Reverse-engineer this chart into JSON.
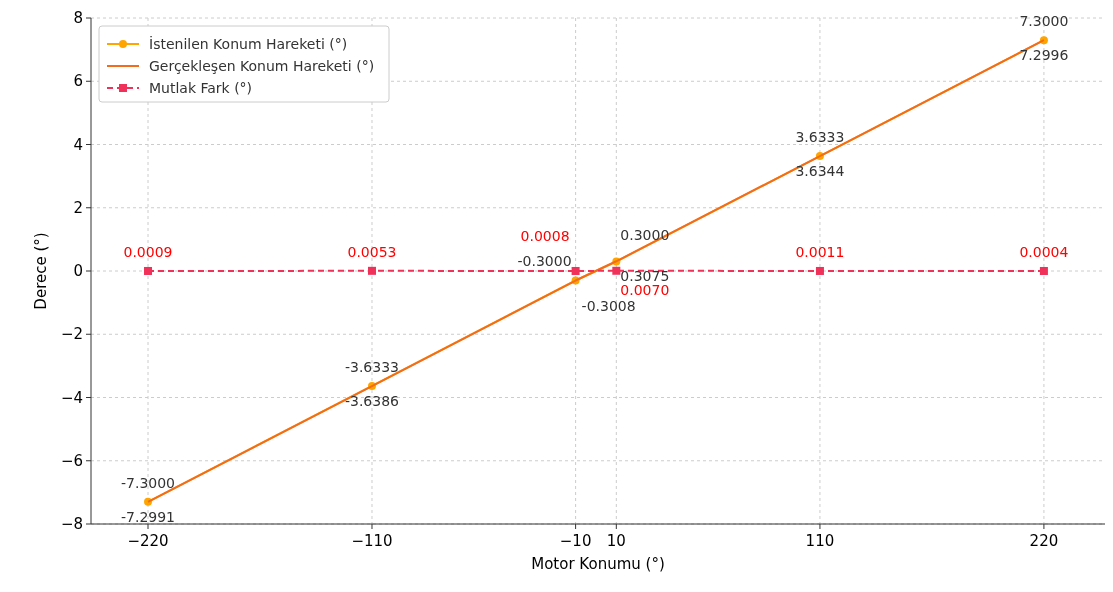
{
  "chart_data": {
    "type": "line",
    "xlabel": "Motor Konumu (°)",
    "ylabel": "Derece (°)",
    "x": [
      -220,
      -110,
      -10,
      10,
      110,
      220
    ],
    "xlim": [
      -248,
      250
    ],
    "ylim": [
      -8,
      8
    ],
    "xticks": [
      -220,
      -110,
      -10,
      10,
      110,
      220
    ],
    "yticks": [
      -8,
      -6,
      -4,
      -2,
      0,
      2,
      4,
      6,
      8
    ],
    "grid": true,
    "legend": "top left",
    "series": [
      {
        "name": "İstenilen Konum Hareketi (°)",
        "color": "#ffa500",
        "marker": "circle",
        "line_style": "solid",
        "values": [
          -7.3,
          -3.6333,
          -0.3,
          0.3,
          3.6333,
          7.3
        ],
        "value_labels": [
          "-7.3000",
          "-3.6333",
          "-0.3000",
          "0.3000",
          "3.6333",
          "7.3000"
        ]
      },
      {
        "name": "Gerçekleşen Konum Hareketi (°)",
        "color": "#f26c1c",
        "marker": "none",
        "line_style": "solid",
        "values": [
          -7.2991,
          -3.6386,
          -0.3008,
          0.3075,
          3.6344,
          7.2996
        ],
        "value_labels": [
          "-7.2991",
          "-3.6386",
          "-0.3008",
          "0.3075",
          "3.6344",
          "7.2996"
        ]
      },
      {
        "name": "Mutlak Fark (°)",
        "color": "#f0325a",
        "marker": "square",
        "line_style": "dashed",
        "values": [
          0.0009,
          0.0053,
          0.0008,
          0.007,
          0.0011,
          0.0004
        ],
        "value_labels": [
          "0.0009",
          "0.0053",
          "0.0008",
          "0.0070",
          "0.0011",
          "0.0004"
        ]
      }
    ]
  }
}
